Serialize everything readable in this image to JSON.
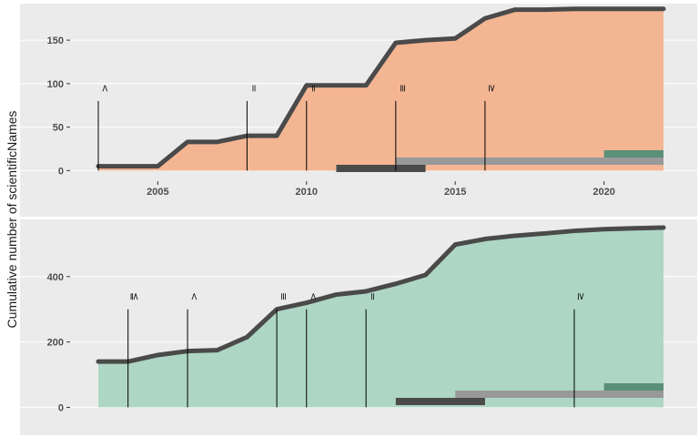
{
  "chart_data": {
    "type": "area",
    "ylabel": "Cumulative number of scientificNames",
    "x_range": [
      2003,
      2022
    ],
    "panels": [
      {
        "fill_color": "#f4b593",
        "line_color": "#4a4a4a",
        "ylim": [
          -8,
          192
        ],
        "y_ticks": [
          0,
          50,
          100,
          150
        ],
        "y_tick_labels": [
          "0",
          "50",
          "100",
          "150"
        ],
        "x_ticks": [
          2005,
          2010,
          2015,
          2020
        ],
        "x_tick_labels": [
          "2005",
          "2010",
          "2015",
          "2020"
        ],
        "series": [
          {
            "x": [
              2003,
              2004,
              2005,
              2006,
              2007,
              2008,
              2009,
              2010,
              2011,
              2012,
              2013,
              2014,
              2015,
              2016,
              2017,
              2018,
              2019,
              2020,
              2021,
              2022
            ],
            "values": [
              5,
              5,
              5,
              33,
              33,
              40,
              40,
              98,
              98,
              98,
              147,
              150,
              152,
              175,
              185,
              185,
              186,
              186,
              186,
              186
            ]
          }
        ],
        "markers": [
          {
            "x": 2003,
            "y_top": 80,
            "label": "<"
          },
          {
            "x": 2008,
            "y_top": 80,
            "label": "="
          },
          {
            "x": 2010,
            "y_top": 80,
            "label": "="
          },
          {
            "x": 2013,
            "y_top": 80,
            "label": "≡"
          },
          {
            "x": 2016,
            "y_top": 80,
            "label": "≥"
          }
        ],
        "ranges": [
          {
            "start": 2011,
            "end": 2014,
            "color": "#4a4a4a",
            "level": 0
          },
          {
            "start": 2013,
            "end": 2022,
            "color": "#999999",
            "level": 1
          },
          {
            "start": 2020,
            "end": 2022,
            "color": "#5a8f78",
            "level": 2
          }
        ]
      },
      {
        "fill_color": "#aed6c5",
        "line_color": "#4a4a4a",
        "ylim": [
          -35,
          575
        ],
        "y_ticks": [
          0,
          200,
          400
        ],
        "y_tick_labels": [
          "0",
          "200",
          "400"
        ],
        "x_ticks": [],
        "x_tick_labels": [],
        "series": [
          {
            "x": [
              2003,
              2004,
              2005,
              2006,
              2007,
              2008,
              2009,
              2010,
              2011,
              2012,
              2013,
              2014,
              2015,
              2016,
              2017,
              2018,
              2019,
              2020,
              2021,
              2022
            ],
            "values": [
              140,
              140,
              160,
              172,
              175,
              215,
              300,
              320,
              345,
              355,
              378,
              405,
              498,
              515,
              525,
              532,
              540,
              545,
              548,
              550
            ]
          }
        ],
        "markers": [
          {
            "x": 2004,
            "y_top": 300,
            "label": "≦"
          },
          {
            "x": 2006,
            "y_top": 300,
            "label": "<"
          },
          {
            "x": 2009,
            "y_top": 300,
            "label": "≡"
          },
          {
            "x": 2010,
            "y_top": 300,
            "label": "<"
          },
          {
            "x": 2012,
            "y_top": 300,
            "label": "="
          },
          {
            "x": 2019,
            "y_top": 300,
            "label": "≥"
          }
        ],
        "ranges": [
          {
            "start": 2013,
            "end": 2016,
            "color": "#4a4a4a",
            "level": 0
          },
          {
            "start": 2015,
            "end": 2022,
            "color": "#999999",
            "level": 1
          },
          {
            "start": 2020,
            "end": 2022,
            "color": "#5a8f78",
            "level": 2
          }
        ]
      }
    ]
  }
}
